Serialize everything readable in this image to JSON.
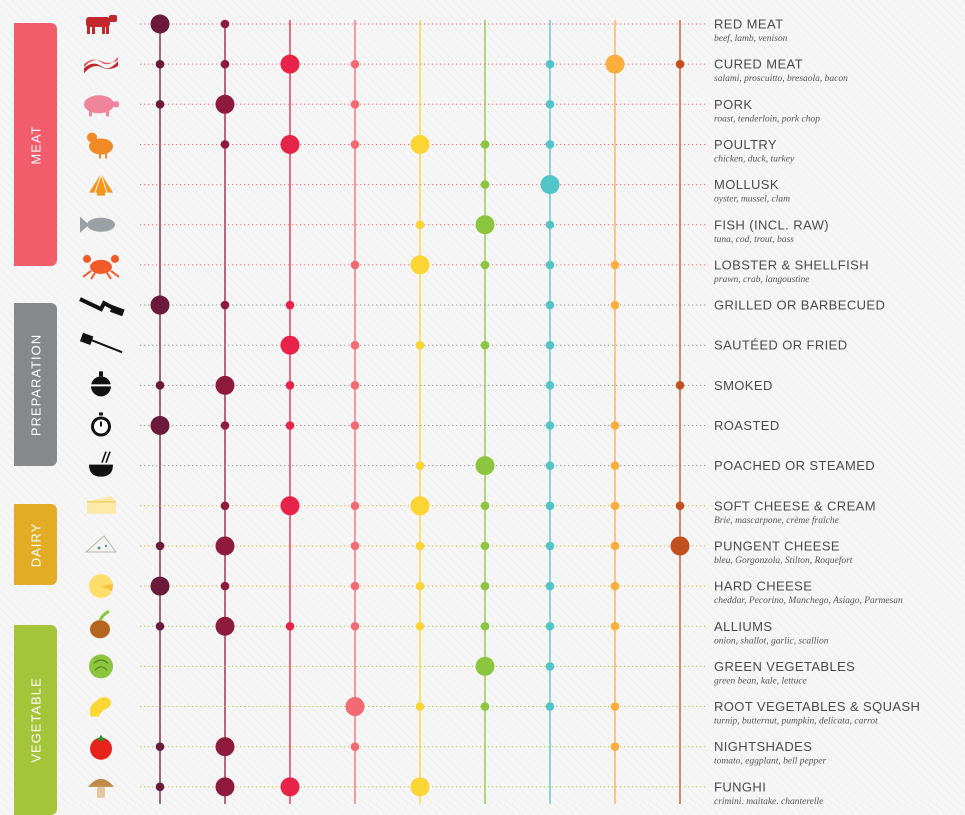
{
  "categories": [
    {
      "key": "meat",
      "label": "MEAT",
      "color": "#f25d6b"
    },
    {
      "key": "preparation",
      "label": "PREPARATION",
      "color": "#86888a"
    },
    {
      "key": "dairy",
      "label": "DAIRY",
      "color": "#e2ad25"
    },
    {
      "key": "vegetable",
      "label": "VEGETABLE",
      "color": "#a4c43a"
    }
  ],
  "chart_data": {
    "type": "scatter",
    "description_encoding": "value 2 = strong pairing (large dot), 1 = pairing (small dot), 0 = none",
    "columns": [
      {
        "color": "#6b1a3a"
      },
      {
        "color": "#8e1b3e"
      },
      {
        "color": "#e8234a"
      },
      {
        "color": "#f26a74"
      },
      {
        "color": "#fbd534"
      },
      {
        "color": "#8cc63f"
      },
      {
        "color": "#52c5c8"
      },
      {
        "color": "#fbae3c"
      },
      {
        "color": "#c1501f"
      }
    ],
    "rows": [
      {
        "title": "RED MEAT",
        "sub": "beef, lamb, venison",
        "category": "meat",
        "icon": "cow-icon",
        "values": [
          2,
          1,
          0,
          0,
          0,
          0,
          0,
          0,
          0
        ]
      },
      {
        "title": "CURED MEAT",
        "sub": "salami, proscuitto, bresaola, bacon",
        "category": "meat",
        "icon": "bacon-icon",
        "values": [
          1,
          1,
          2,
          1,
          0,
          0,
          1,
          2,
          1
        ]
      },
      {
        "title": "PORK",
        "sub": "roast, tenderloin, pork chop",
        "category": "meat",
        "icon": "pig-icon",
        "values": [
          1,
          2,
          0,
          1,
          0,
          0,
          1,
          0,
          0
        ]
      },
      {
        "title": "POULTRY",
        "sub": "chicken, duck, turkey",
        "category": "meat",
        "icon": "chicken-icon",
        "values": [
          0,
          1,
          2,
          1,
          2,
          1,
          1,
          0,
          0
        ]
      },
      {
        "title": "MOLLUSK",
        "sub": "oyster, mussel, clam",
        "category": "meat",
        "icon": "shell-icon",
        "values": [
          0,
          0,
          0,
          0,
          0,
          1,
          2,
          0,
          0
        ]
      },
      {
        "title": "FISH (INCL. RAW)",
        "sub": "tuna, cod, trout, bass",
        "category": "meat",
        "icon": "fish-icon",
        "values": [
          0,
          0,
          0,
          0,
          1,
          2,
          1,
          0,
          0
        ]
      },
      {
        "title": "LOBSTER & SHELLFISH",
        "sub": "prawn, crab, langoustine",
        "category": "meat",
        "icon": "crab-icon",
        "values": [
          0,
          0,
          0,
          1,
          2,
          1,
          1,
          1,
          0
        ]
      },
      {
        "title": "GRILLED OR BARBECUED",
        "sub": "",
        "category": "preparation",
        "icon": "grill-spatula-icon",
        "values": [
          2,
          1,
          1,
          0,
          0,
          0,
          1,
          1,
          0
        ]
      },
      {
        "title": "SAUTÉED OR FRIED",
        "sub": "",
        "category": "preparation",
        "icon": "fry-spatula-icon",
        "values": [
          0,
          0,
          2,
          1,
          1,
          1,
          1,
          0,
          0
        ]
      },
      {
        "title": "SMOKED",
        "sub": "",
        "category": "preparation",
        "icon": "smoker-icon",
        "values": [
          1,
          2,
          1,
          1,
          0,
          0,
          1,
          0,
          1
        ]
      },
      {
        "title": "ROASTED",
        "sub": "",
        "category": "preparation",
        "icon": "timer-icon",
        "values": [
          2,
          1,
          1,
          1,
          0,
          0,
          1,
          1,
          0
        ]
      },
      {
        "title": "POACHED OR STEAMED",
        "sub": "",
        "category": "preparation",
        "icon": "bowl-icon",
        "values": [
          0,
          0,
          0,
          0,
          1,
          2,
          1,
          1,
          0
        ]
      },
      {
        "title": "SOFT CHEESE & CREAM",
        "sub": "Brie, mascarpone, crème fraîche",
        "category": "dairy",
        "icon": "cheese-slice-icon",
        "values": [
          0,
          1,
          2,
          1,
          2,
          1,
          1,
          1,
          1
        ]
      },
      {
        "title": "PUNGENT CHEESE",
        "sub": "bleu, Gorgonzola, Stilton, Roquefort",
        "category": "dairy",
        "icon": "blue-cheese-icon",
        "values": [
          1,
          2,
          0,
          1,
          1,
          1,
          1,
          1,
          2
        ]
      },
      {
        "title": "HARD CHEESE",
        "sub": "cheddar, Pecorino, Manchego, Asiago, Parmesan",
        "category": "dairy",
        "icon": "cheese-wheel-icon",
        "values": [
          2,
          1,
          0,
          1,
          1,
          1,
          1,
          1,
          0
        ]
      },
      {
        "title": "ALLIUMS",
        "sub": "onion, shallot, garlic, scallion",
        "category": "vegetable",
        "icon": "onion-icon",
        "values": [
          1,
          2,
          1,
          1,
          1,
          1,
          1,
          1,
          0
        ]
      },
      {
        "title": "GREEN VEGETABLES",
        "sub": "green bean, kale, lettuce",
        "category": "vegetable",
        "icon": "cabbage-icon",
        "values": [
          0,
          0,
          0,
          0,
          0,
          2,
          1,
          0,
          0
        ]
      },
      {
        "title": "ROOT VEGETABLES & SQUASH",
        "sub": "turnip, butternut, pumpkin, delicata, carrot",
        "category": "vegetable",
        "icon": "squash-icon",
        "values": [
          0,
          0,
          0,
          2,
          1,
          1,
          1,
          1,
          0
        ]
      },
      {
        "title": "NIGHTSHADES",
        "sub": "tomato, eggplant, bell pepper",
        "category": "vegetable",
        "icon": "tomato-icon",
        "values": [
          1,
          2,
          0,
          1,
          0,
          0,
          0,
          1,
          0
        ]
      },
      {
        "title": "FUNGHI",
        "sub": "crimini, maitake, chanterelle",
        "category": "vegetable",
        "icon": "mushroom-icon",
        "values": [
          1,
          2,
          2,
          0,
          2,
          0,
          0,
          0,
          0
        ]
      }
    ]
  }
}
